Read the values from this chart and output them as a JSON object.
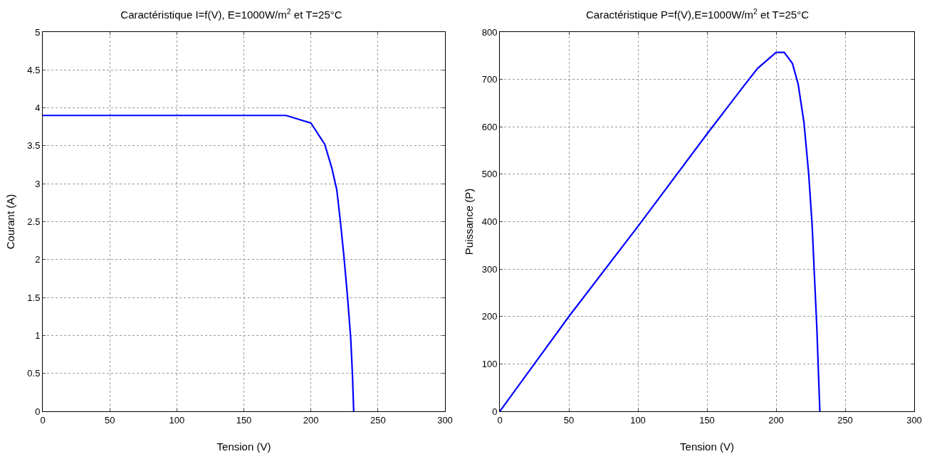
{
  "chart_data": [
    {
      "type": "line",
      "title": "Caractéristique I=f(V), E=1000W/m$^{2}$ et T=25°C",
      "xlabel": "Tension (V)",
      "ylabel": "Courant (A)",
      "x": [
        0,
        150,
        181.5,
        200,
        210.3,
        215.7,
        219.3,
        222,
        224.7,
        227.4,
        229.7,
        231,
        231.9
      ],
      "series": [
        {
          "color": "#0000ff",
          "values": [
            3.9,
            3.9,
            3.9,
            3.8,
            3.52,
            3.2,
            2.92,
            2.5,
            2.03,
            1.49,
            0.96,
            0.48,
            0
          ]
        }
      ],
      "xlim": [
        0,
        300
      ],
      "xticks": [
        0,
        50,
        100,
        150,
        200,
        250,
        300
      ],
      "ylim": [
        0,
        5
      ],
      "yticks": [
        0,
        0.5,
        1,
        1.5,
        2,
        2.5,
        3,
        3.5,
        4,
        4.5,
        5
      ],
      "grid": true,
      "marker": "none",
      "line_style": "solid"
    },
    {
      "type": "line",
      "title": "Caractéristique P=f(V),E=1000W/m$^{2}$ et T=25°C",
      "xlabel": "Tension (V)",
      "ylabel": "Puissance (P)",
      "x": [
        0,
        50,
        100,
        150,
        175,
        186.5,
        200,
        205.9,
        211.8,
        216,
        220.2,
        223.6,
        226.1,
        227.8,
        229.5,
        230.7,
        231.7
      ],
      "series": [
        {
          "color": "#0000ff",
          "values": [
            0,
            200,
            390,
            585,
            680,
            723,
            757,
            757,
            734,
            690,
            609,
            501,
            393,
            284,
            177,
            79,
            0
          ]
        }
      ],
      "xlim": [
        0,
        300
      ],
      "xticks": [
        0,
        50,
        100,
        150,
        200,
        250,
        300
      ],
      "ylim": [
        0,
        800
      ],
      "yticks": [
        0,
        100,
        200,
        300,
        400,
        500,
        600,
        700,
        800
      ],
      "grid": true,
      "marker": "none",
      "line_style": "solid"
    }
  ]
}
